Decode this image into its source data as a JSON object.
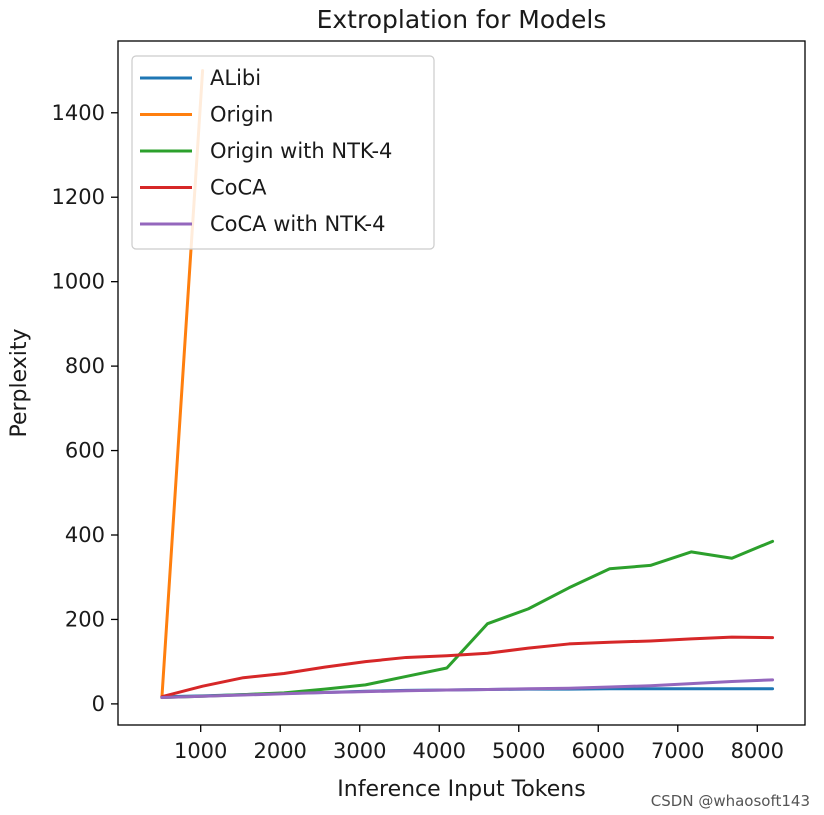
{
  "chart_data": {
    "type": "line",
    "title": "Extroplation for Models",
    "xlabel": "Inference Input Tokens",
    "ylabel": "Perplexity",
    "xlim": [
      -40,
      8600
    ],
    "ylim": [
      -50,
      1570
    ],
    "xticks": [
      1000,
      2000,
      3000,
      4000,
      5000,
      6000,
      7000,
      8000
    ],
    "yticks": [
      0,
      200,
      400,
      600,
      800,
      1000,
      1200,
      1400
    ],
    "legend_position": "upper-left",
    "grid": false,
    "series": [
      {
        "name": "ALibi",
        "color": "#1f77b4",
        "x": [
          512,
          1024,
          1536,
          2048,
          2560,
          3072,
          3584,
          4096,
          4608,
          5120,
          5632,
          6144,
          6656,
          7168,
          7680,
          8192
        ],
        "y": [
          17,
          19,
          22,
          25,
          27,
          30,
          32,
          33,
          34,
          35,
          35,
          36,
          36,
          36,
          36,
          36
        ]
      },
      {
        "name": "Origin",
        "color": "#ff7f0e",
        "x": [
          512,
          1024
        ],
        "y": [
          15,
          1500
        ]
      },
      {
        "name": "Origin with NTK-4",
        "color": "#2ca02c",
        "x": [
          512,
          1024,
          1536,
          2048,
          2560,
          3072,
          3584,
          4096,
          4608,
          5120,
          5632,
          6144,
          6656,
          7168,
          7680,
          8192
        ],
        "y": [
          15,
          18,
          22,
          26,
          35,
          45,
          65,
          85,
          190,
          225,
          275,
          320,
          328,
          360,
          345,
          385
        ]
      },
      {
        "name": "CoCA",
        "color": "#d62728",
        "x": [
          512,
          1024,
          1536,
          2048,
          2560,
          3072,
          3584,
          4096,
          4608,
          5120,
          5632,
          6144,
          6656,
          7168,
          7680,
          8192
        ],
        "y": [
          17,
          42,
          62,
          72,
          87,
          100,
          110,
          114,
          120,
          132,
          142,
          146,
          149,
          154,
          158,
          157
        ]
      },
      {
        "name": "CoCA with NTK-4",
        "color": "#9467bd",
        "x": [
          512,
          1024,
          1536,
          2048,
          2560,
          3072,
          3584,
          4096,
          4608,
          5120,
          5632,
          6144,
          6656,
          7168,
          7680,
          8192
        ],
        "y": [
          15,
          18,
          21,
          24,
          27,
          29,
          31,
          33,
          34,
          36,
          37,
          40,
          43,
          48,
          53,
          57
        ]
      }
    ]
  },
  "watermark": "CSDN @whaosoft143"
}
